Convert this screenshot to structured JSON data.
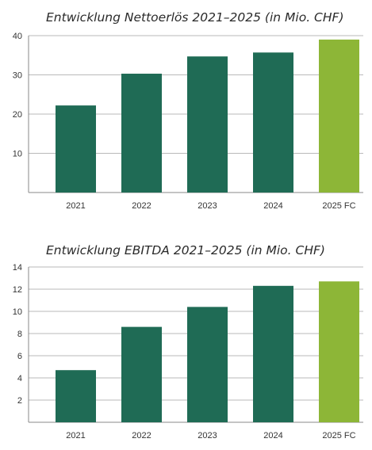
{
  "colors": {
    "actual": "#1f6b55",
    "forecast": "#8db637",
    "grid": "#b9b9b9",
    "axis": "#8a8a8a",
    "text": "#333333"
  },
  "chart_data": [
    {
      "type": "bar",
      "title": "Entwicklung Nettoerlös 2021–2025 (in Mio. CHF)",
      "categories": [
        "2021",
        "2022",
        "2023",
        "2024",
        "2025 FC"
      ],
      "values": [
        22.2,
        30.3,
        34.7,
        35.7,
        39.0
      ],
      "forecast_index": 4,
      "ylim": [
        0,
        40
      ],
      "yticks": [
        "10",
        "20",
        "30",
        "40"
      ],
      "xlabel": "",
      "ylabel": "",
      "grid": true
    },
    {
      "type": "bar",
      "title": "Entwicklung EBITDA 2021–2025 (in Mio. CHF)",
      "categories": [
        "2021",
        "2022",
        "2023",
        "2024",
        "2025 FC"
      ],
      "values": [
        4.7,
        8.6,
        10.4,
        12.3,
        12.7
      ],
      "forecast_index": 4,
      "ylim": [
        0,
        14
      ],
      "yticks": [
        "2",
        "4",
        "6",
        "8",
        "10",
        "12",
        "14"
      ],
      "xlabel": "",
      "ylabel": "",
      "grid": true
    }
  ]
}
